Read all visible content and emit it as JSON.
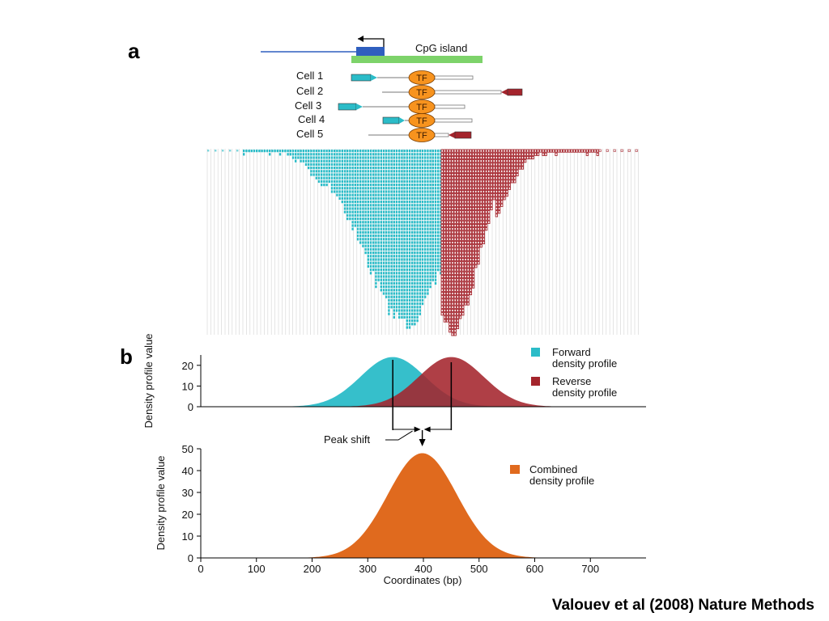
{
  "panel_a": {
    "label": "a",
    "cpg_label": "CpG island",
    "cells": [
      {
        "label": "Cell 1",
        "tf": "TF",
        "left": "forward",
        "right": "none"
      },
      {
        "label": "Cell 2",
        "tf": "TF",
        "left": "none",
        "right": "reverse"
      },
      {
        "label": "Cell 3",
        "tf": "TF",
        "left": "forward",
        "right": "none"
      },
      {
        "label": "Cell 4",
        "tf": "TF",
        "left": "forward",
        "right": "none"
      },
      {
        "label": "Cell 5",
        "tf": "TF",
        "left": "none",
        "right": "reverse"
      }
    ]
  },
  "panel_b": {
    "label": "b",
    "peak_shift_label": "Peak shift"
  },
  "citation": "Valouev et al (2008) Nature Methods",
  "colors": {
    "forward": "#2bbcc8",
    "reverse": "#a4242c",
    "combined": "#e06a1e",
    "cpg": "#7dd36a",
    "gene": "#2f5fbf",
    "tf": "#f7931e"
  },
  "chart_data": [
    {
      "type": "area",
      "ylabel": "Density profile value",
      "ylim": [
        0,
        25
      ],
      "yticks": [
        0,
        10,
        20
      ],
      "xlim": [
        0,
        800
      ],
      "series": [
        {
          "name": "Forward density profile",
          "peak_x": 345,
          "peak_y": 24,
          "sd": 58,
          "color": "#2bbcc8"
        },
        {
          "name": "Reverse density profile",
          "peak_x": 450,
          "peak_y": 24,
          "sd": 58,
          "color": "#a4242c"
        }
      ],
      "legend": "top-right"
    },
    {
      "type": "area",
      "xlabel": "Coordinates (bp)",
      "ylabel": "Density profile value",
      "ylim": [
        0,
        50
      ],
      "yticks": [
        0,
        10,
        20,
        30,
        40,
        50
      ],
      "xlim": [
        0,
        800
      ],
      "xticks": [
        0,
        100,
        200,
        300,
        400,
        500,
        600,
        700
      ],
      "series": [
        {
          "name": "Combined density profile",
          "peak_x": 398,
          "peak_y": 48,
          "sd": 62,
          "color": "#e06a1e"
        }
      ],
      "legend": "top-right"
    }
  ]
}
